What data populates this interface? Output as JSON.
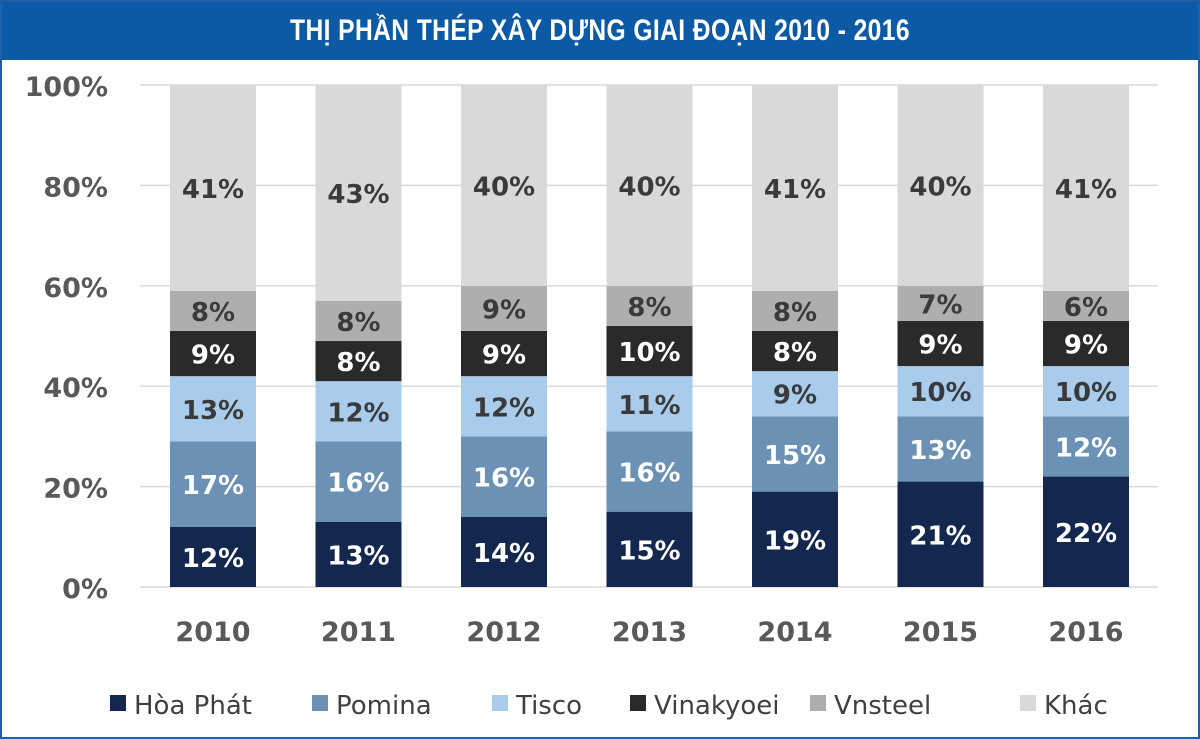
{
  "chart_data": {
    "type": "bar",
    "stacked": true,
    "title": "THỊ PHẦN THÉP XÂY DỰNG GIAI ĐOẠN 2010 - 2016",
    "categories": [
      "2010",
      "2011",
      "2012",
      "2013",
      "2014",
      "2015",
      "2016"
    ],
    "ylim": [
      0,
      100
    ],
    "y_ticks": [
      "0%",
      "20%",
      "40%",
      "60%",
      "80%",
      "100%"
    ],
    "y_tick_values": [
      0,
      20,
      40,
      60,
      80,
      100
    ],
    "grid": true,
    "legend_position": "bottom",
    "series": [
      {
        "name": "Hòa Phát",
        "color": "#14274e",
        "label_color": "#ffffff",
        "values": [
          12,
          13,
          14,
          15,
          19,
          21,
          22
        ],
        "labels": [
          "12%",
          "13%",
          "14%",
          "15%",
          "19%",
          "21%",
          "22%"
        ]
      },
      {
        "name": "Pomina",
        "color": "#6b91b4",
        "label_color": "#ffffff",
        "values": [
          17,
          16,
          16,
          16,
          15,
          13,
          12
        ],
        "labels": [
          "17%",
          "16%",
          "16%",
          "16%",
          "15%",
          "13%",
          "12%"
        ]
      },
      {
        "name": "Tisco",
        "color": "#a9cbec",
        "label_color": "#3a3a3a",
        "values": [
          13,
          12,
          12,
          11,
          9,
          10,
          10
        ],
        "labels": [
          "13%",
          "12%",
          "12%",
          "11%",
          "9%",
          "10%",
          "10%"
        ]
      },
      {
        "name": "Vinakyoei",
        "color": "#2a2a2a",
        "label_color": "#ffffff",
        "values": [
          9,
          8,
          9,
          10,
          8,
          9,
          9
        ],
        "labels": [
          "9%",
          "8%",
          "9%",
          "10%",
          "8%",
          "9%",
          "9%"
        ]
      },
      {
        "name": "Vnsteel",
        "color": "#b0adad",
        "label_color": "#3a3a3a",
        "values": [
          8,
          8,
          9,
          8,
          8,
          7,
          6
        ],
        "labels": [
          "8%",
          "8%",
          "9%",
          "8%",
          "8%",
          "7%",
          "6%"
        ]
      },
      {
        "name": "Khác",
        "color": "#d9d9d9",
        "label_color": "#3a3a3a",
        "values": [
          41,
          43,
          40,
          40,
          41,
          40,
          41
        ],
        "labels": [
          "41%",
          "43%",
          "40%",
          "40%",
          "41%",
          "40%",
          "41%"
        ]
      }
    ],
    "axis_text_color": "#595959",
    "grid_color": "#d9d9d9",
    "title_bar_color": "#0c5aa6"
  }
}
